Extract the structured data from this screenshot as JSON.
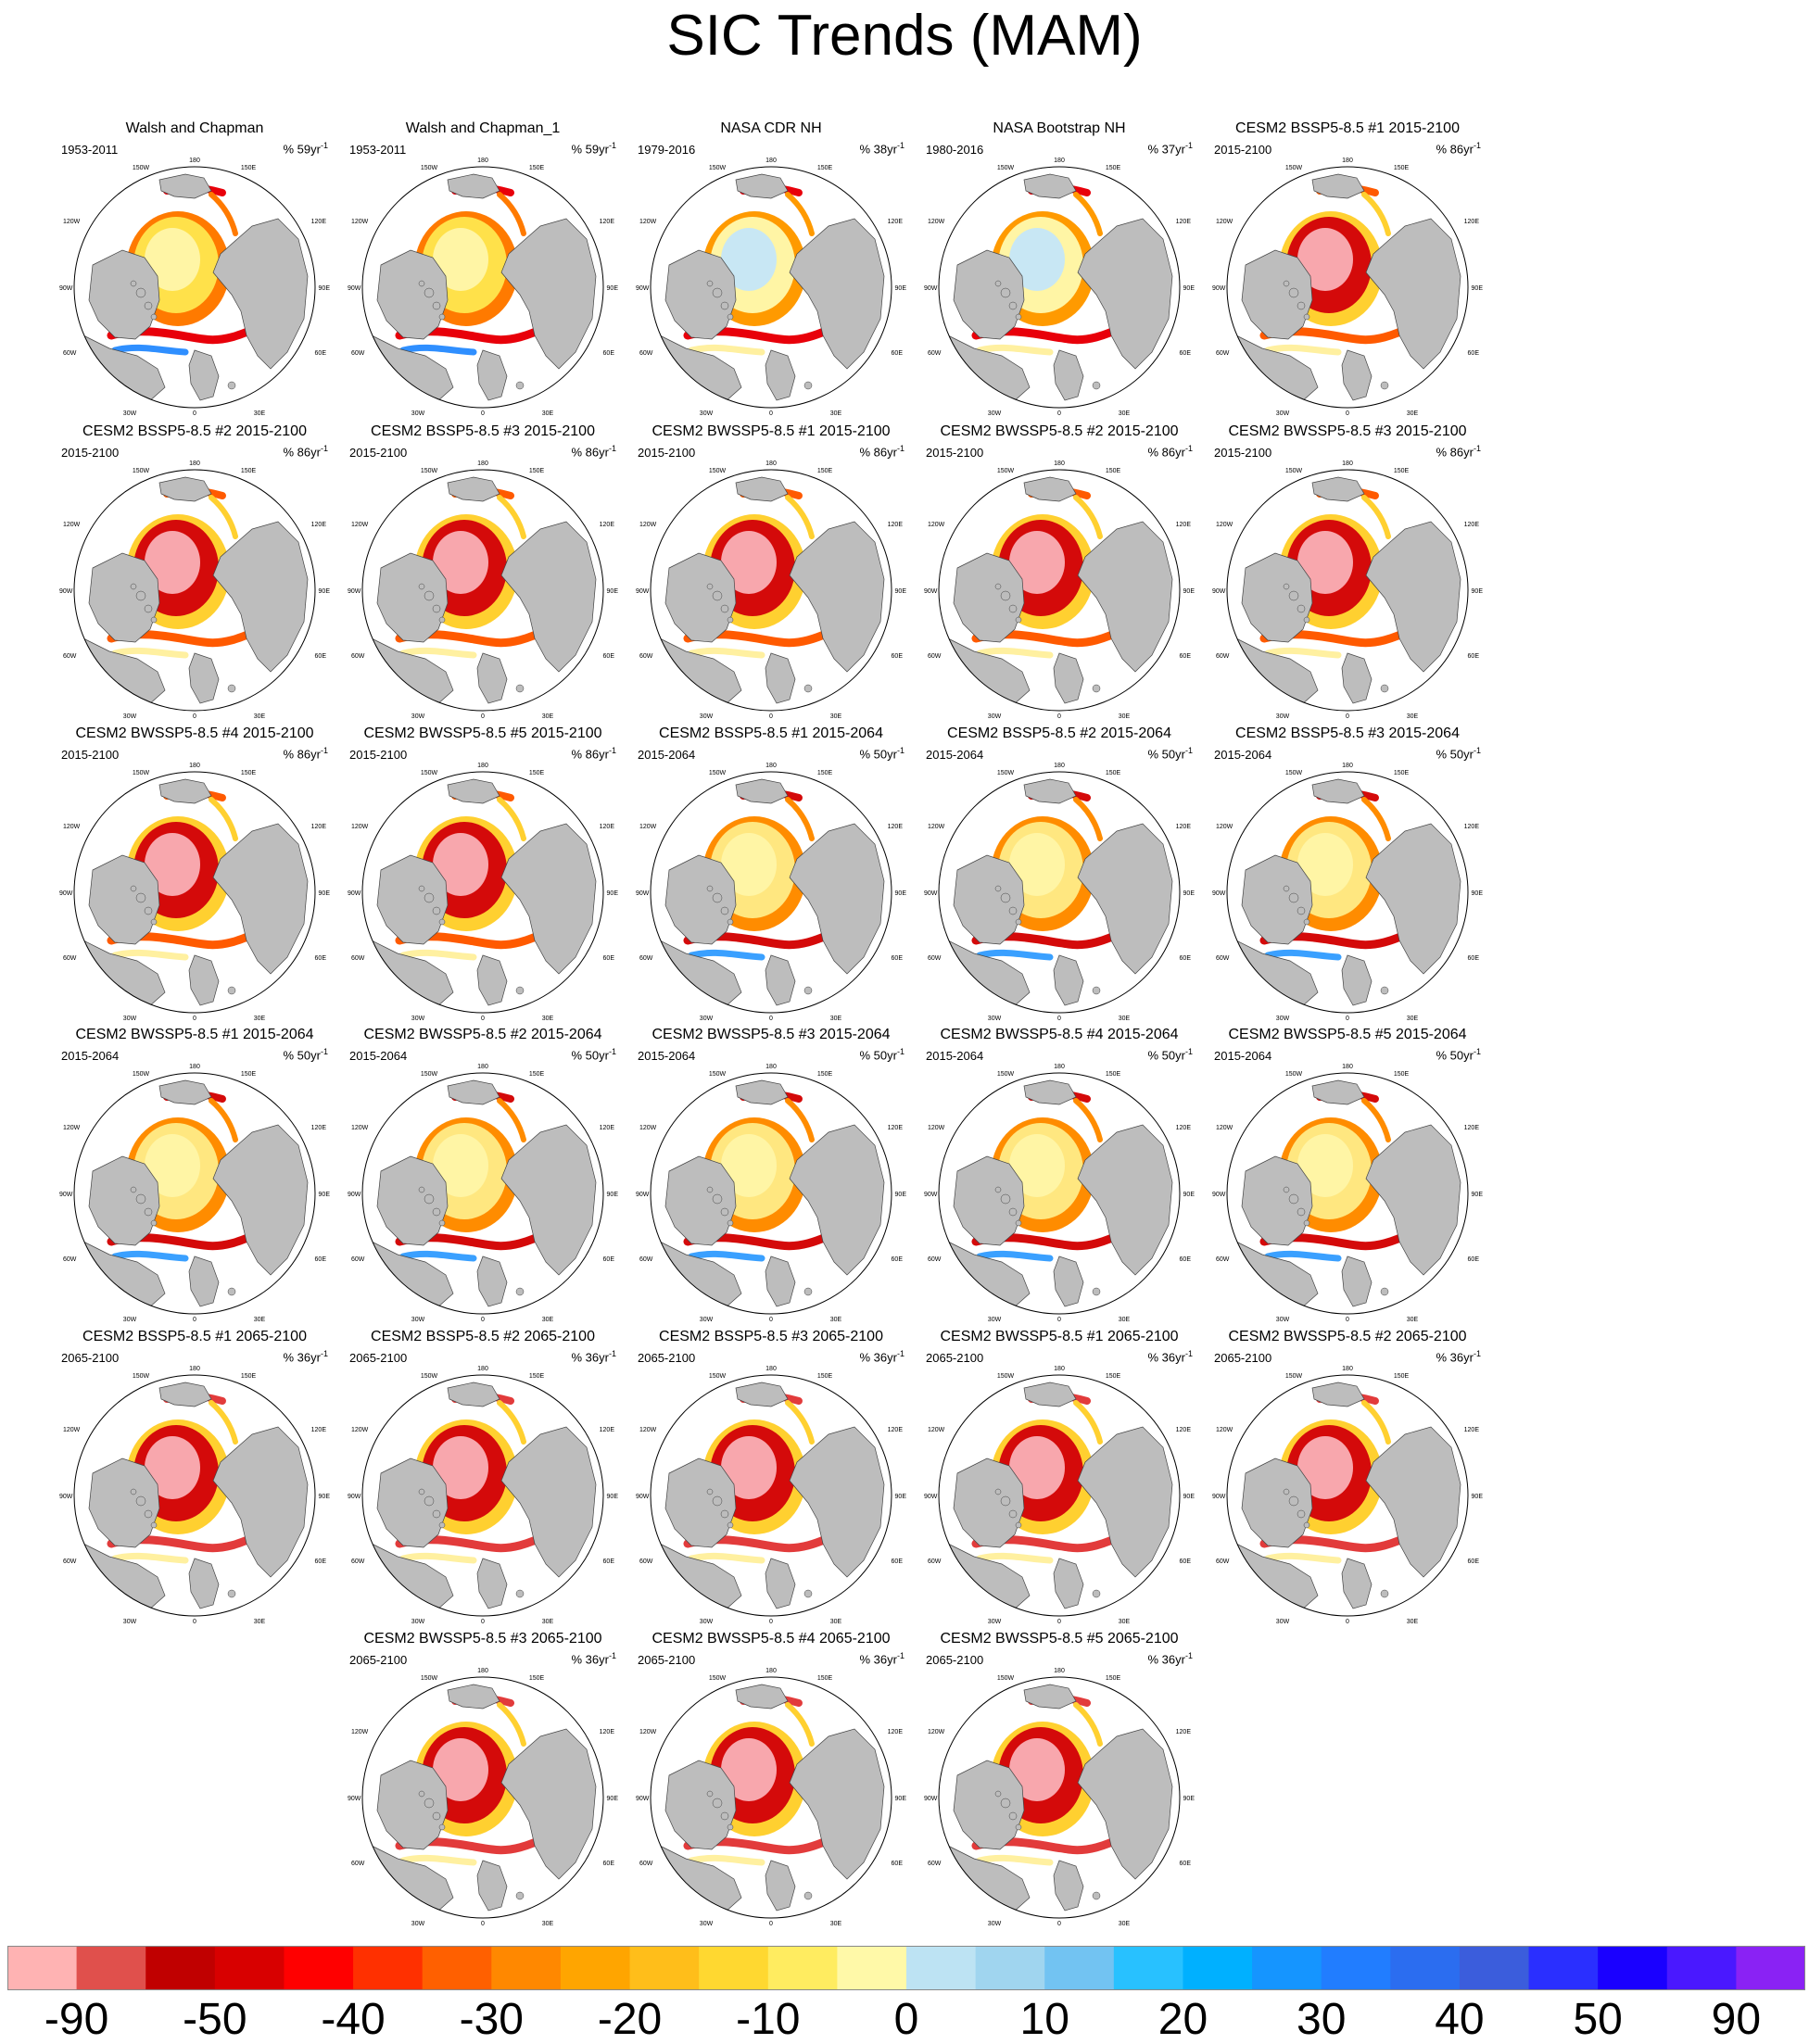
{
  "title": "SIC Trends (MAM)",
  "panels": [
    {
      "title": "Walsh and Chapman",
      "period": "1953-2011",
      "units": "% 59yr",
      "sup": "-1",
      "scheme": "obs_wc"
    },
    {
      "title": "Walsh and Chapman_1",
      "period": "1953-2011",
      "units": "% 59yr",
      "sup": "-1",
      "scheme": "obs_wc"
    },
    {
      "title": "NASA CDR NH",
      "period": "1979-2016",
      "units": "% 38yr",
      "sup": "-1",
      "scheme": "obs_nasa"
    },
    {
      "title": "NASA Bootstrap NH",
      "period": "1980-2016",
      "units": "% 37yr",
      "sup": "-1",
      "scheme": "obs_nasa"
    },
    {
      "title": "CESM2 BSSP5-8.5 #1 2015-2100",
      "period": "2015-2100",
      "units": "% 86yr",
      "sup": "-1",
      "scheme": "full"
    },
    {
      "title": "CESM2 BSSP5-8.5 #2 2015-2100",
      "period": "2015-2100",
      "units": "% 86yr",
      "sup": "-1",
      "scheme": "full"
    },
    {
      "title": "CESM2 BSSP5-8.5 #3 2015-2100",
      "period": "2015-2100",
      "units": "% 86yr",
      "sup": "-1",
      "scheme": "full"
    },
    {
      "title": "CESM2 BWSSP5-8.5 #1 2015-2100",
      "period": "2015-2100",
      "units": "% 86yr",
      "sup": "-1",
      "scheme": "full"
    },
    {
      "title": "CESM2 BWSSP5-8.5 #2 2015-2100",
      "period": "2015-2100",
      "units": "% 86yr",
      "sup": "-1",
      "scheme": "full"
    },
    {
      "title": "CESM2 BWSSP5-8.5 #3 2015-2100",
      "period": "2015-2100",
      "units": "% 86yr",
      "sup": "-1",
      "scheme": "full"
    },
    {
      "title": "CESM2 BWSSP5-8.5 #4 2015-2100",
      "period": "2015-2100",
      "units": "% 86yr",
      "sup": "-1",
      "scheme": "full"
    },
    {
      "title": "CESM2 BWSSP5-8.5 #5 2015-2100",
      "period": "2015-2100",
      "units": "% 86yr",
      "sup": "-1",
      "scheme": "full"
    },
    {
      "title": "CESM2 BSSP5-8.5 #1 2015-2064",
      "period": "2015-2064",
      "units": "% 50yr",
      "sup": "-1",
      "scheme": "early"
    },
    {
      "title": "CESM2 BSSP5-8.5 #2 2015-2064",
      "period": "2015-2064",
      "units": "% 50yr",
      "sup": "-1",
      "scheme": "early"
    },
    {
      "title": "CESM2 BSSP5-8.5 #3 2015-2064",
      "period": "2015-2064",
      "units": "% 50yr",
      "sup": "-1",
      "scheme": "early"
    },
    {
      "title": "CESM2 BWSSP5-8.5 #1 2015-2064",
      "period": "2015-2064",
      "units": "% 50yr",
      "sup": "-1",
      "scheme": "early"
    },
    {
      "title": "CESM2 BWSSP5-8.5 #2 2015-2064",
      "period": "2015-2064",
      "units": "% 50yr",
      "sup": "-1",
      "scheme": "early"
    },
    {
      "title": "CESM2 BWSSP5-8.5 #3 2015-2064",
      "period": "2015-2064",
      "units": "% 50yr",
      "sup": "-1",
      "scheme": "early"
    },
    {
      "title": "CESM2 BWSSP5-8.5 #4 2015-2064",
      "period": "2015-2064",
      "units": "% 50yr",
      "sup": "-1",
      "scheme": "early"
    },
    {
      "title": "CESM2 BWSSP5-8.5 #5 2015-2064",
      "period": "2015-2064",
      "units": "% 50yr",
      "sup": "-1",
      "scheme": "early"
    },
    {
      "title": "CESM2 BSSP5-8.5 #1 2065-2100",
      "period": "2065-2100",
      "units": "% 36yr",
      "sup": "-1",
      "scheme": "late"
    },
    {
      "title": "CESM2 BSSP5-8.5 #2 2065-2100",
      "period": "2065-2100",
      "units": "% 36yr",
      "sup": "-1",
      "scheme": "late"
    },
    {
      "title": "CESM2 BSSP5-8.5 #3 2065-2100",
      "period": "2065-2100",
      "units": "% 36yr",
      "sup": "-1",
      "scheme": "late"
    },
    {
      "title": "CESM2 BWSSP5-8.5 #1 2065-2100",
      "period": "2065-2100",
      "units": "% 36yr",
      "sup": "-1",
      "scheme": "late"
    },
    {
      "title": "CESM2 BWSSP5-8.5 #2 2065-2100",
      "period": "2065-2100",
      "units": "% 36yr",
      "sup": "-1",
      "scheme": "late"
    },
    {
      "title": "CESM2 BWSSP5-8.5 #3 2065-2100",
      "period": "2065-2100",
      "units": "% 36yr",
      "sup": "-1",
      "scheme": "late"
    },
    {
      "title": "CESM2 BWSSP5-8.5 #4 2065-2100",
      "period": "2065-2100",
      "units": "% 36yr",
      "sup": "-1",
      "scheme": "late"
    },
    {
      "title": "CESM2 BWSSP5-8.5 #5 2065-2100",
      "period": "2065-2100",
      "units": "% 36yr",
      "sup": "-1",
      "scheme": "late"
    }
  ],
  "map_labels": {
    "top": "180",
    "upper_left": "150W",
    "upper_right": "150E",
    "left_high": "120W",
    "right_high": "120E",
    "left_mid": "90W",
    "right_mid": "90E",
    "left_low": "60W",
    "right_low": "60E",
    "lower_left": "30W",
    "lower_right": "30E",
    "bottom": "0"
  },
  "colors": {
    "land": "#bdbdbd",
    "ocean": "#ffffff",
    "coast": "#444444",
    "schemes": {
      "obs_wc": {
        "center": "#fff5a5",
        "ring": "#ffe14a",
        "edge": "#ff7a00",
        "accent": "#e8000a",
        "accent2": "#2f8fff"
      },
      "obs_nasa": {
        "center": "#c8e7f4",
        "ring": "#fff5a5",
        "edge": "#ff9a00",
        "accent": "#e8000a",
        "accent2": "#fff0a0"
      },
      "full": {
        "center": "#f8a7ad",
        "ring": "#d40a0a",
        "edge": "#ffd030",
        "accent": "#ff5a00",
        "accent2": "#fff0a0"
      },
      "early": {
        "center": "#fff5a5",
        "ring": "#ffe780",
        "edge": "#ff8c00",
        "accent": "#d40a0a",
        "accent2": "#3aa0ff"
      },
      "late": {
        "center": "#f8a7ad",
        "ring": "#d40a0a",
        "edge": "#ffd030",
        "accent": "#e23b3b",
        "accent2": "#fff0a0"
      }
    }
  },
  "colorbar": {
    "colors": [
      "#ffb3b3",
      "#e0504c",
      "#c00000",
      "#d80000",
      "#ff0000",
      "#ff3000",
      "#ff6000",
      "#ff8800",
      "#ffa500",
      "#ffbe1a",
      "#ffd830",
      "#ffec60",
      "#fff9a8",
      "#bde3f3",
      "#a0d5ef",
      "#72c3f2",
      "#28c1ff",
      "#00b0ff",
      "#1595ff",
      "#217dff",
      "#2b6df0",
      "#3b5ddc",
      "#2a2fff",
      "#1a00ff",
      "#4a18ff",
      "#8a22f4"
    ],
    "tick_labels": [
      "-90",
      "-50",
      "-40",
      "-30",
      "-20",
      "-10",
      "0",
      "10",
      "20",
      "30",
      "40",
      "50",
      "90"
    ]
  }
}
